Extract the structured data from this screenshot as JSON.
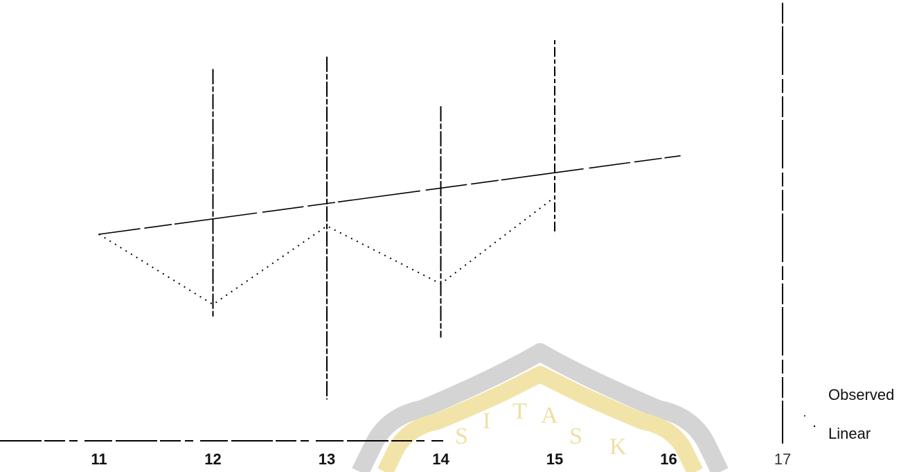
{
  "chart_data": {
    "type": "line",
    "title": "",
    "xlabel": "",
    "ylabel": "",
    "x_ticks": [
      11,
      12,
      13,
      14,
      15,
      16,
      17
    ],
    "xlim": [
      11,
      17
    ],
    "ylim": [
      0,
      10
    ],
    "grid": false,
    "legend_placement": "bottom-right",
    "series": [
      {
        "name": "Observed",
        "style": "dotted",
        "points": [
          [
            11,
            5.0
          ],
          [
            12,
            3.3
          ],
          [
            13,
            5.2
          ],
          [
            14,
            3.8
          ],
          [
            15,
            5.9
          ]
        ]
      },
      {
        "name": "Linear",
        "style": "solid",
        "points": [
          [
            11,
            5.0
          ],
          [
            16.1,
            6.9
          ]
        ]
      }
    ],
    "error_bars": [
      {
        "x": 12,
        "low": 3.0,
        "high": 9.0
      },
      {
        "x": 13,
        "low": 1.0,
        "high": 9.3
      },
      {
        "x": 14,
        "low": 2.5,
        "high": 8.1
      },
      {
        "x": 15,
        "low": 5.0,
        "high": 9.7
      }
    ]
  },
  "watermark": {
    "letters": [
      "S",
      "I",
      "T",
      "A",
      "S",
      "K"
    ],
    "color": "#f2e4a8"
  }
}
